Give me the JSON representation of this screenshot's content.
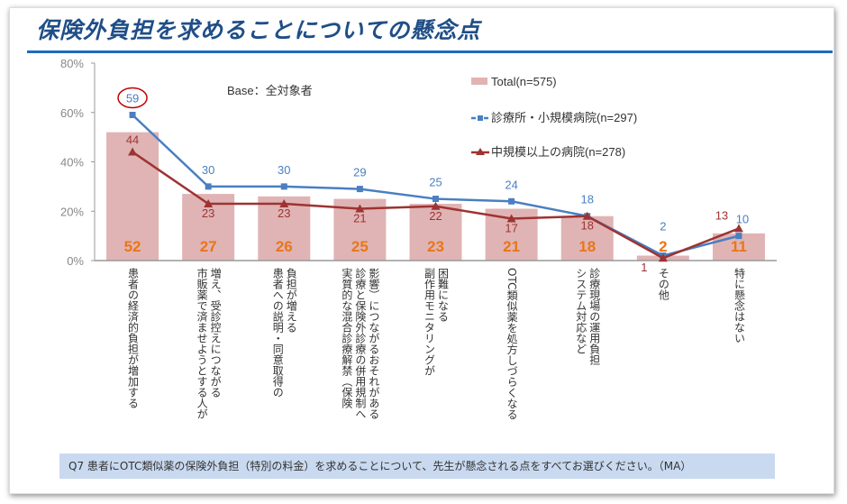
{
  "title": "保険外負担を求めることについての懸念点",
  "base_note": "Base：全対象者",
  "question": "Q7 患者にOTC類似薬の保険外負担（特別の料金）を求めることについて、先生が懸念される点をすべてお選びください。（MA）",
  "colors": {
    "total": "#e0b4b4",
    "clinic": "#4a7fc1",
    "hospital": "#9e3333",
    "total_label": "#e8761a",
    "title": "#1f4e87",
    "highlight_circle": "#c00000"
  },
  "chart_data": {
    "type": "bar+line",
    "ylim": [
      0,
      80
    ],
    "yticks": [
      "0%",
      "20%",
      "40%",
      "60%",
      "80%"
    ],
    "ytick_values": [
      0,
      20,
      40,
      60,
      80
    ],
    "grid": false,
    "legend_placement": "top-right",
    "categories": [
      [
        "患者の経済的負担が増加する"
      ],
      [
        "増え、受診控えにつながる",
        "市販薬で済ませようとする人が"
      ],
      [
        "負担が増える",
        "患者への説明・同意取得の"
      ],
      [
        "影響）につながるおそれがある",
        "診療と保険外診療の併用規制へ",
        "実質的な混合診療解禁（保険"
      ],
      [
        "困難になる",
        "副作用モニタリングが"
      ],
      [
        "OTC類似薬を処方しづらくなる"
      ],
      [
        "診療現場の運用負担",
        "システム対応など"
      ],
      [
        "その他"
      ],
      [
        "特に懸念はない"
      ]
    ],
    "series": [
      {
        "name": "Total(n=575)",
        "type": "bar",
        "values": [
          52,
          27,
          26,
          25,
          23,
          21,
          18,
          2,
          11
        ]
      },
      {
        "name": "診療所・小規模病院(n=297)",
        "type": "line",
        "marker": "square",
        "values": [
          59,
          30,
          30,
          29,
          25,
          24,
          18,
          2,
          10
        ]
      },
      {
        "name": "中規模以上の病院(n=278)",
        "type": "line",
        "marker": "triangle",
        "values": [
          44,
          23,
          23,
          21,
          22,
          17,
          18,
          1,
          13
        ]
      }
    ],
    "highlighted": {
      "series": 1,
      "index": 0
    }
  }
}
